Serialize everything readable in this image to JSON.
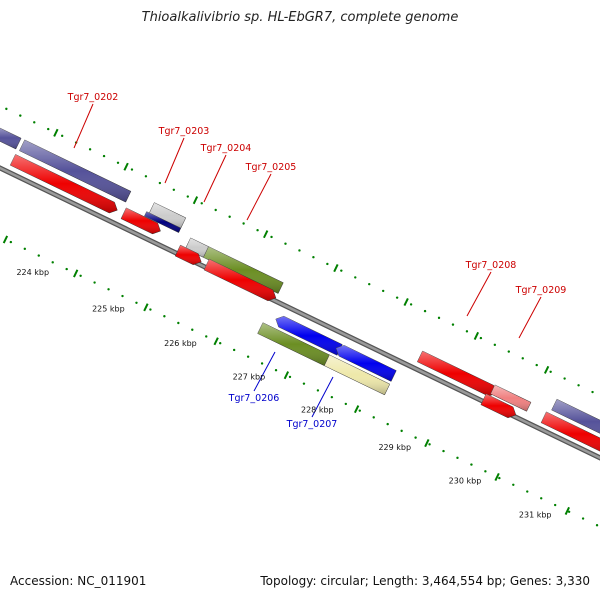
{
  "title": "Thioalkalivibrio sp. HL-EbGR7, complete genome",
  "footer": {
    "accession": "Accession: NC_011901",
    "topology": "Topology: circular; Length: 3,464,554 bp; Genes: 3,330"
  },
  "ruler_labels": [
    "224 kbp",
    "225 kbp",
    "226 kbp",
    "227 kbp",
    "228 kbp",
    "229 kbp",
    "230 kbp",
    "231 kbp"
  ],
  "gene_labels": [
    {
      "text": "Tgr7_0202",
      "color": "#cc0000"
    },
    {
      "text": "Tgr7_0203",
      "color": "#cc0000"
    },
    {
      "text": "Tgr7_0204",
      "color": "#cc0000"
    },
    {
      "text": "Tgr7_0205",
      "color": "#cc0000"
    },
    {
      "text": "Tgr7_0206",
      "color": "#0000cc"
    },
    {
      "text": "Tgr7_0207",
      "color": "#0000cc"
    },
    {
      "text": "Tgr7_0208",
      "color": "#cc0000"
    },
    {
      "text": "Tgr7_0209",
      "color": "#cc0000"
    }
  ],
  "colors": {
    "cds": "#ee0000",
    "rna_purple": "#55529a",
    "blue_gene": "#0000ee",
    "navy_gene": "#000080",
    "olive_gene": "#6b8e23",
    "khaki_gene": "#eee8aa",
    "grey_gene": "#cccccc",
    "pink_gene": "#f08080",
    "backbone": "#888888",
    "tick": "#008000"
  }
}
